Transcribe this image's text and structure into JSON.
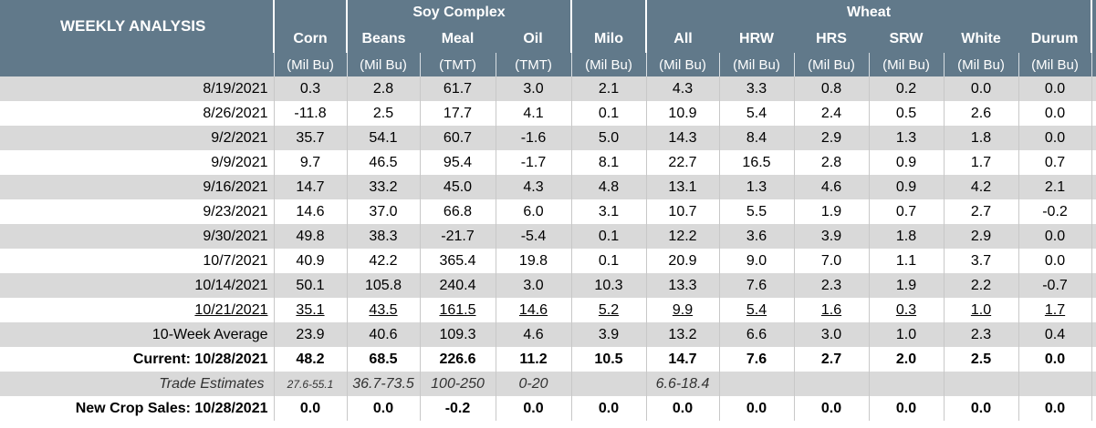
{
  "header": {
    "title": "WEEKLY ANALYSIS",
    "groups": [
      "Soy Complex",
      "Wheat"
    ],
    "columns": [
      {
        "name": "Corn",
        "unit": "(Mil Bu)"
      },
      {
        "name": "Beans",
        "unit": "(Mil Bu)"
      },
      {
        "name": "Meal",
        "unit": "(TMT)"
      },
      {
        "name": "Oil",
        "unit": "(TMT)"
      },
      {
        "name": "Milo",
        "unit": "(Mil Bu)"
      },
      {
        "name": "All",
        "unit": "(Mil Bu)"
      },
      {
        "name": "HRW",
        "unit": "(Mil Bu)"
      },
      {
        "name": "HRS",
        "unit": "(Mil Bu)"
      },
      {
        "name": "SRW",
        "unit": "(Mil Bu)"
      },
      {
        "name": "White",
        "unit": "(Mil Bu)"
      },
      {
        "name": "Durum",
        "unit": "(Mil Bu)"
      }
    ]
  },
  "table": {
    "rows": [
      {
        "label": "8/19/2021",
        "values": [
          "0.3",
          "2.8",
          "61.7",
          "3.0",
          "2.1",
          "4.3",
          "3.3",
          "0.8",
          "0.2",
          "0.0",
          "0.0"
        ]
      },
      {
        "label": "8/26/2021",
        "values": [
          "-11.8",
          "2.5",
          "17.7",
          "4.1",
          "0.1",
          "10.9",
          "5.4",
          "2.4",
          "0.5",
          "2.6",
          "0.0"
        ]
      },
      {
        "label": "9/2/2021",
        "values": [
          "35.7",
          "54.1",
          "60.7",
          "-1.6",
          "5.0",
          "14.3",
          "8.4",
          "2.9",
          "1.3",
          "1.8",
          "0.0"
        ]
      },
      {
        "label": "9/9/2021",
        "values": [
          "9.7",
          "46.5",
          "95.4",
          "-1.7",
          "8.1",
          "22.7",
          "16.5",
          "2.8",
          "0.9",
          "1.7",
          "0.7"
        ]
      },
      {
        "label": "9/16/2021",
        "values": [
          "14.7",
          "33.2",
          "45.0",
          "4.3",
          "4.8",
          "13.1",
          "1.3",
          "4.6",
          "0.9",
          "4.2",
          "2.1"
        ]
      },
      {
        "label": "9/23/2021",
        "values": [
          "14.6",
          "37.0",
          "66.8",
          "6.0",
          "3.1",
          "10.7",
          "5.5",
          "1.9",
          "0.7",
          "2.7",
          "-0.2"
        ]
      },
      {
        "label": "9/30/2021",
        "values": [
          "49.8",
          "38.3",
          "-21.7",
          "-5.4",
          "0.1",
          "12.2",
          "3.6",
          "3.9",
          "1.8",
          "2.9",
          "0.0"
        ]
      },
      {
        "label": "10/7/2021",
        "values": [
          "40.9",
          "42.2",
          "365.4",
          "19.8",
          "0.1",
          "20.9",
          "9.0",
          "7.0",
          "1.1",
          "3.7",
          "0.0"
        ]
      },
      {
        "label": "10/14/2021",
        "values": [
          "50.1",
          "105.8",
          "240.4",
          "3.0",
          "10.3",
          "13.3",
          "7.6",
          "2.3",
          "1.9",
          "2.2",
          "-0.7"
        ]
      },
      {
        "label": "10/21/2021",
        "values": [
          "35.1",
          "43.5",
          "161.5",
          "14.6",
          "5.2",
          "9.9",
          "5.4",
          "1.6",
          "0.3",
          "1.0",
          "1.7"
        ]
      },
      {
        "label": "10-Week Average",
        "values": [
          "23.9",
          "40.6",
          "109.3",
          "4.6",
          "3.9",
          "13.2",
          "6.6",
          "3.0",
          "1.0",
          "2.3",
          "0.4"
        ]
      },
      {
        "label": "Current: 10/28/2021",
        "values": [
          "48.2",
          "68.5",
          "226.6",
          "11.2",
          "10.5",
          "14.7",
          "7.6",
          "2.7",
          "2.0",
          "2.5",
          "0.0"
        ]
      },
      {
        "label": "Trade Estimates",
        "values": [
          "27.6-55.1",
          "36.7-73.5",
          "100-250",
          "0-20",
          null,
          "6.6-18.4",
          null,
          null,
          null,
          null,
          null
        ]
      },
      {
        "label": "New Crop Sales: 10/28/2021",
        "values": [
          "0.0",
          "0.0",
          "-0.2",
          "0.0",
          "0.0",
          "0.0",
          "0.0",
          "0.0",
          "0.0",
          "0.0",
          "0.0"
        ]
      }
    ]
  }
}
